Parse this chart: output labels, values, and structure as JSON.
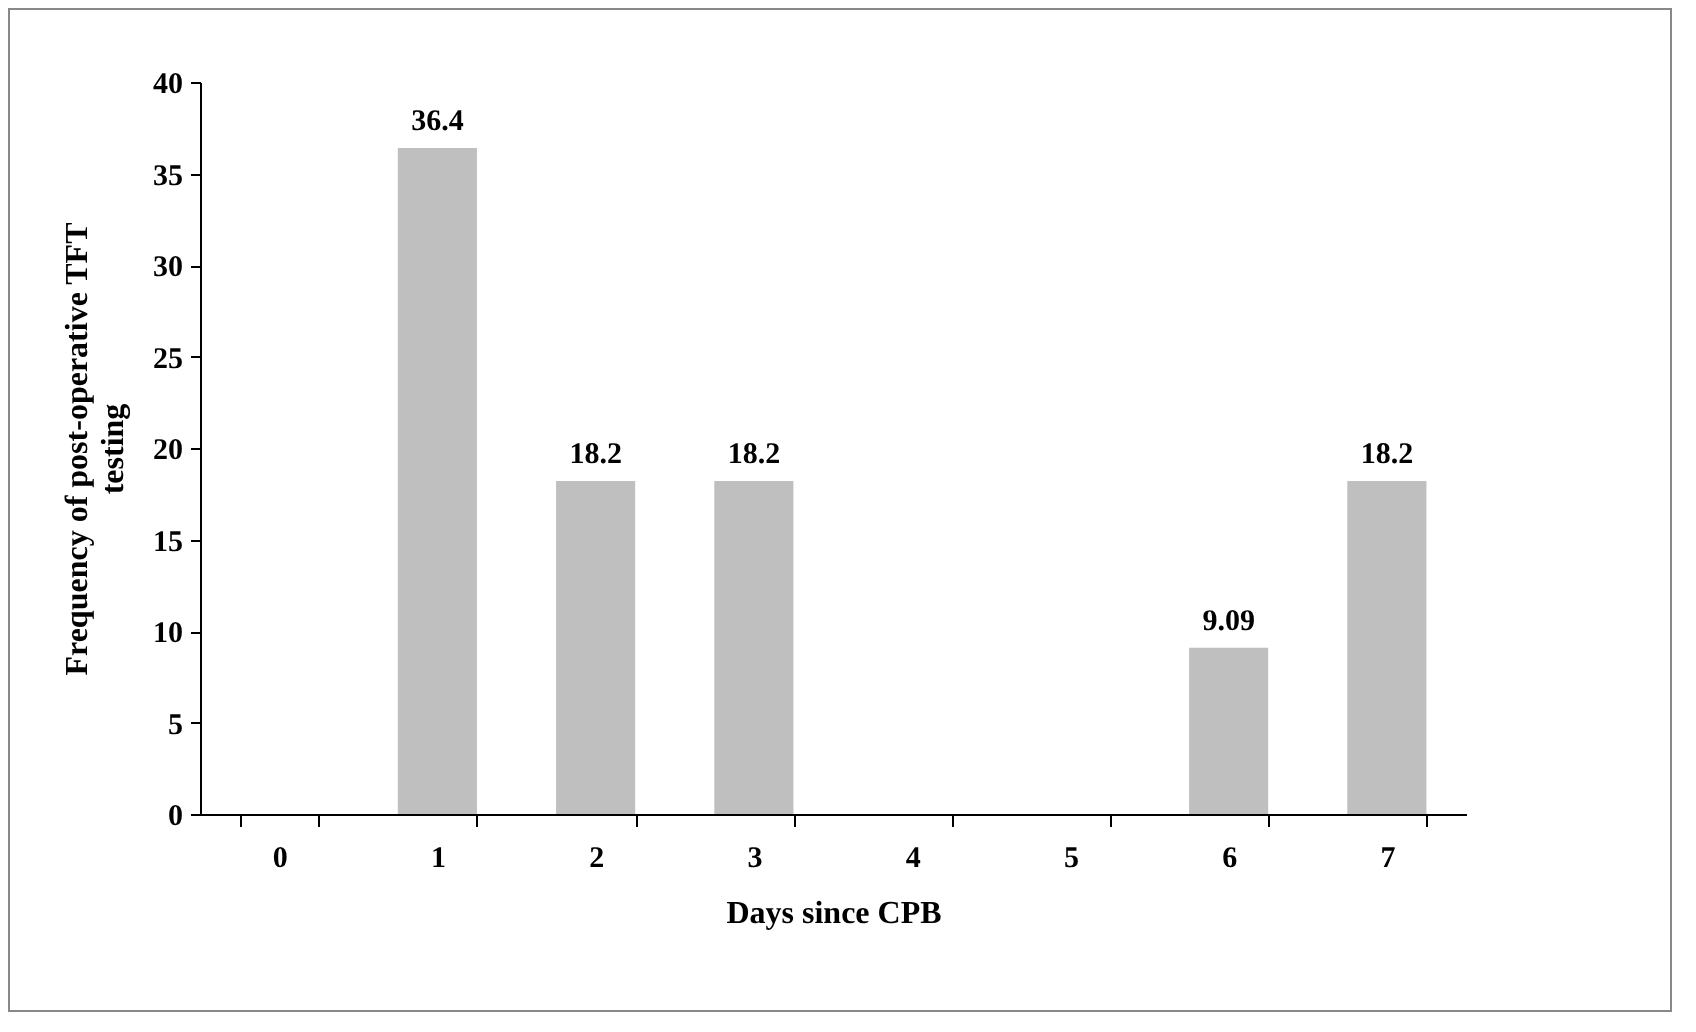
{
  "chart_data": {
    "type": "bar",
    "xlabel": "Days since CPB",
    "ylabel": "Frequency of post-operative TFT testing",
    "categories": [
      "0",
      "1",
      "2",
      "3",
      "4",
      "5",
      "6",
      "7"
    ],
    "values": [
      0,
      36.4,
      18.2,
      18.2,
      0,
      0,
      9.09,
      18.2
    ],
    "value_labels": [
      null,
      "36.4",
      "18.2",
      "18.2",
      null,
      null,
      "9.09",
      "18.2"
    ],
    "color": "#bfbfbf",
    "ylim": [
      0,
      40
    ],
    "yticks": [
      0,
      5,
      10,
      15,
      20,
      25,
      30,
      35,
      40
    ],
    "grid": false
  }
}
